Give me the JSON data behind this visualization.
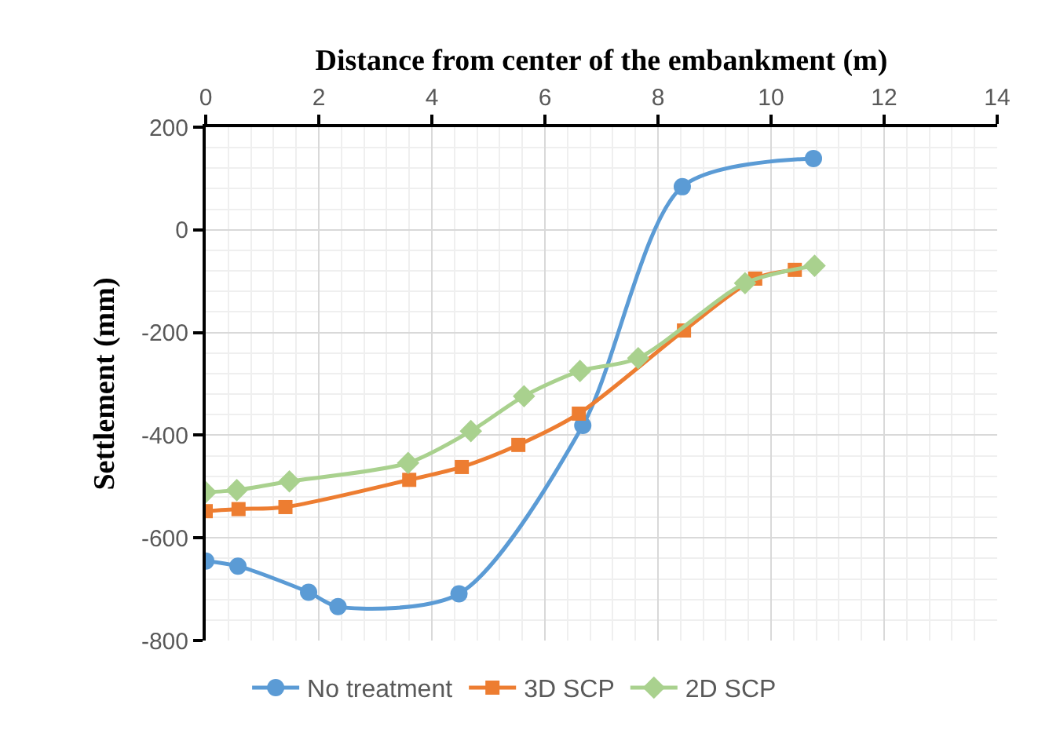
{
  "chart_data": {
    "type": "line",
    "xlabel": "Distance from center of the embankment (m)",
    "ylabel": "Settlement (mm)",
    "xlim": [
      0,
      14
    ],
    "xticks": [
      0,
      2,
      4,
      6,
      8,
      10,
      12,
      14
    ],
    "ylim": [
      -800,
      200
    ],
    "yticks": [
      -800,
      -600,
      -400,
      -200,
      0,
      200
    ],
    "grid": true,
    "legend": "bottom",
    "line_style": "solid",
    "series": [
      {
        "name": "No treatment",
        "color": "#5b9bd5",
        "marker": "circle",
        "x": [
          0,
          0.57,
          1.82,
          2.34,
          4.48,
          6.67,
          8.43,
          10.75
        ],
        "values": [
          -645,
          -655,
          -706,
          -734,
          -709,
          -381,
          84,
          139
        ]
      },
      {
        "name": "3D SCP",
        "color": "#ed7d31",
        "marker": "square",
        "x": [
          0,
          0.58,
          1.41,
          3.6,
          4.53,
          5.53,
          6.6,
          8.46,
          9.72,
          10.42
        ],
        "values": [
          -548,
          -544,
          -540,
          -487,
          -462,
          -419,
          -358,
          -196,
          -95,
          -78
        ]
      },
      {
        "name": "2D SCP",
        "color": "#a9d18e",
        "marker": "diamond",
        "x": [
          0,
          0.55,
          1.48,
          3.58,
          4.69,
          5.63,
          6.62,
          7.65,
          9.54,
          10.77
        ],
        "values": [
          -511,
          -507,
          -490,
          -454,
          -392,
          -324,
          -275,
          -250,
          -104,
          -70
        ]
      }
    ]
  }
}
